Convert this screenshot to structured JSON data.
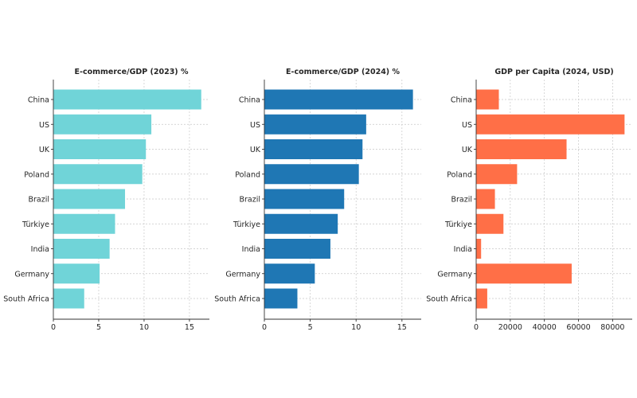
{
  "chart_data": [
    {
      "type": "bar",
      "orientation": "horizontal",
      "title": "E-commerce/GDP (2023) %",
      "categories": [
        "China",
        "US",
        "UK",
        "Poland",
        "Brazil",
        "Türkiye",
        "India",
        "Germany",
        "South Africa"
      ],
      "values": [
        16.3,
        10.8,
        10.2,
        9.8,
        7.9,
        6.8,
        6.2,
        5.1,
        3.4
      ],
      "xlim": [
        0,
        17.2
      ],
      "xticks": [
        0,
        5,
        10,
        15
      ],
      "xtick_labels": [
        "0",
        "5",
        "10",
        "15"
      ],
      "color": "#70d4d8",
      "grid": true
    },
    {
      "type": "bar",
      "orientation": "horizontal",
      "title": "E-commerce/GDP (2024) %",
      "categories": [
        "China",
        "US",
        "UK",
        "Poland",
        "Brazil",
        "Türkiye",
        "India",
        "Germany",
        "South Africa"
      ],
      "values": [
        16.2,
        11.1,
        10.7,
        10.3,
        8.7,
        8.0,
        7.2,
        5.5,
        3.6
      ],
      "xlim": [
        0,
        17.1
      ],
      "xticks": [
        0,
        5,
        10,
        15
      ],
      "xtick_labels": [
        "0",
        "5",
        "10",
        "15"
      ],
      "color": "#1f77b4",
      "grid": true
    },
    {
      "type": "bar",
      "orientation": "horizontal",
      "title": "GDP per Capita (2024, USD)",
      "categories": [
        "China",
        "US",
        "UK",
        "Poland",
        "Brazil",
        "Türkiye",
        "India",
        "Germany",
        "South Africa"
      ],
      "values": [
        13300,
        87000,
        53000,
        24000,
        11000,
        16000,
        2900,
        56000,
        6500
      ],
      "xlim": [
        0,
        91500
      ],
      "xticks": [
        0,
        20000,
        40000,
        60000,
        80000
      ],
      "xtick_labels": [
        "0",
        "20000",
        "40000",
        "60000",
        "80000"
      ],
      "color": "#ff6f47",
      "grid": true
    }
  ]
}
